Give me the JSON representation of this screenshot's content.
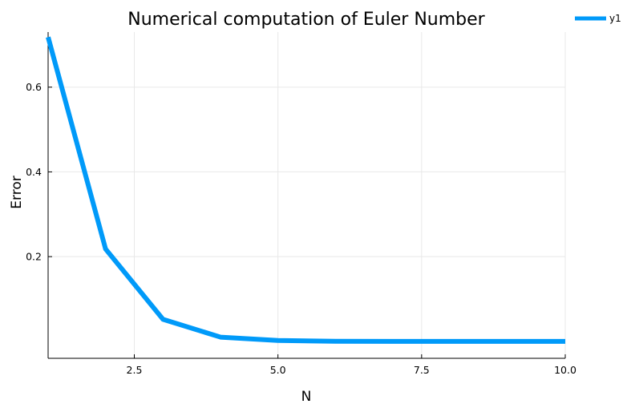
{
  "chart_data": {
    "type": "line",
    "title": "Numerical computation of Euler Number",
    "xlabel": "N",
    "ylabel": "Error",
    "xlim": [
      1,
      10
    ],
    "ylim": [
      -0.04,
      0.73
    ],
    "x_ticks": [
      2.5,
      5.0,
      7.5,
      10.0
    ],
    "x_tick_labels": [
      "2.5",
      "5.0",
      "7.5",
      "10.0"
    ],
    "y_ticks": [
      0.2,
      0.4,
      0.6
    ],
    "y_tick_labels": [
      "0.2",
      "0.4",
      "0.6"
    ],
    "grid": true,
    "legend_position": "top-right",
    "series": [
      {
        "name": "y1",
        "color": "#009af9",
        "x": [
          1,
          2,
          3,
          4,
          5,
          6,
          7,
          8,
          9,
          10
        ],
        "values": [
          0.718,
          0.218,
          0.052,
          0.01,
          0.002,
          0.0003,
          4e-05,
          3e-06,
          3e-07,
          3e-08
        ]
      }
    ]
  }
}
